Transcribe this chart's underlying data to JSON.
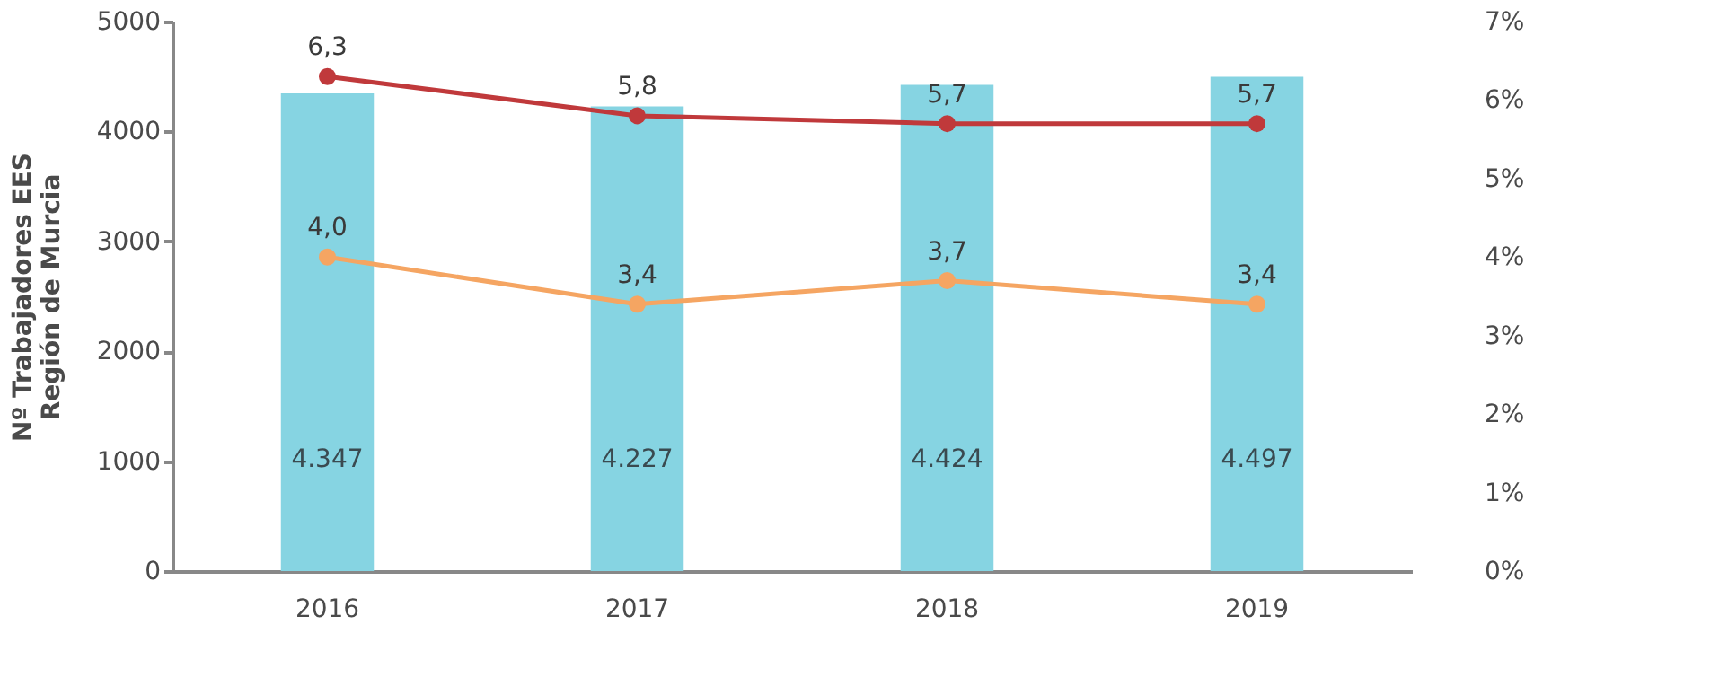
{
  "chart_data": {
    "type": "bar",
    "ylabel": "Nº Trabajadores EES\nRegión de Murcia",
    "categories": [
      "2016",
      "2017",
      "2018",
      "2019"
    ],
    "series": [
      {
        "color": "#86d4e2",
        "values": [
          4347,
          4227,
          4424,
          4497
        ],
        "value_labels": [
          "4.347",
          "4.227",
          "4.424",
          "4.497"
        ]
      },
      {
        "type": "line",
        "axis": "y2",
        "color": "#c0393b",
        "values": [
          6.3,
          5.8,
          5.7,
          5.7
        ],
        "value_labels": [
          "6,3",
          "5,8",
          "5,7",
          "5,7"
        ]
      },
      {
        "type": "line",
        "axis": "y2",
        "color": "#f5a562",
        "values": [
          4.0,
          3.4,
          3.7,
          3.4
        ],
        "value_labels": [
          "4,0",
          "3,4",
          "3,7",
          "3,4"
        ]
      }
    ],
    "ylim": [
      0,
      5000
    ],
    "yticks": [
      0,
      1000,
      2000,
      3000,
      4000,
      5000
    ],
    "y2lim": [
      0,
      7
    ],
    "y2ticks": [
      {
        "value": 0,
        "label": "0%"
      },
      {
        "value": 1,
        "label": "1%"
      },
      {
        "value": 2,
        "label": "2%"
      },
      {
        "value": 3,
        "label": "3%"
      },
      {
        "value": 4,
        "label": "4%"
      },
      {
        "value": 5,
        "label": "5%"
      },
      {
        "value": 6,
        "label": "6%"
      },
      {
        "value": 7,
        "label": "7%"
      }
    ],
    "grid": false,
    "marker": "circle",
    "line_style": "solid"
  }
}
